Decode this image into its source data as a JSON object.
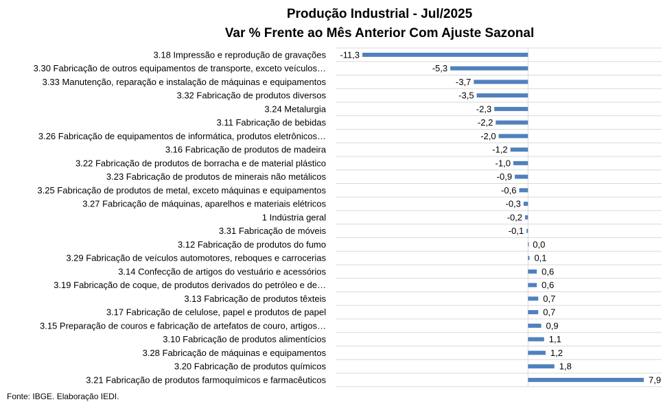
{
  "chart_data": {
    "type": "bar",
    "orientation": "horizontal",
    "title": "Produção Industrial - Jul/2025",
    "subtitle": "Var % Frente ao Mês Anterior Com Ajuste Sazonal",
    "source": "Fonte: IBGE. Elaboração IEDI.",
    "xlim": [
      -11.3,
      7.9
    ],
    "bar_color": "#4f81bd",
    "grid": true,
    "categories": [
      "3.18 Impressão e reprodução de gravações",
      "3.30 Fabricação de outros equipamentos de transporte, exceto veículos…",
      "3.33 Manutenção, reparação e instalação de máquinas e equipamentos",
      "3.32 Fabricação de produtos diversos",
      "3.24 Metalurgia",
      "3.11 Fabricação de bebidas",
      "3.26 Fabricação de equipamentos de informática, produtos eletrônicos…",
      "3.16 Fabricação de produtos de madeira",
      "3.22 Fabricação de produtos de borracha e de material plástico",
      "3.23 Fabricação de produtos de minerais não metálicos",
      "3.25 Fabricação de produtos de metal, exceto máquinas e equipamentos",
      "3.27 Fabricação de máquinas, aparelhos e materiais elétricos",
      "1 Indústria geral",
      "3.31 Fabricação de móveis",
      "3.12 Fabricação de produtos do fumo",
      "3.29 Fabricação de veículos automotores, reboques e carrocerias",
      "3.14 Confecção de artigos do vestuário e acessórios",
      "3.19 Fabricação de coque, de produtos derivados do petróleo e de…",
      "3.13 Fabricação de produtos têxteis",
      "3.17 Fabricação de celulose, papel e produtos de papel",
      "3.15 Preparação de couros e fabricação de artefatos de couro, artigos…",
      "3.10 Fabricação de produtos alimentícios",
      "3.28 Fabricação de máquinas e equipamentos",
      "3.20 Fabricação de produtos químicos",
      "3.21 Fabricação de produtos farmoquímicos e farmacêuticos"
    ],
    "values": [
      -11.3,
      -5.3,
      -3.7,
      -3.5,
      -2.3,
      -2.2,
      -2.0,
      -1.2,
      -1.0,
      -0.9,
      -0.6,
      -0.3,
      -0.2,
      -0.1,
      0.0,
      0.1,
      0.6,
      0.6,
      0.7,
      0.7,
      0.9,
      1.1,
      1.2,
      1.8,
      7.9
    ],
    "labels": [
      "-11,3",
      "-5,3",
      "-3,7",
      "-3,5",
      "-2,3",
      "-2,2",
      "-2,0",
      "-1,2",
      "-1,0",
      "-0,9",
      "-0,6",
      "-0,3",
      "-0,2",
      "-0,1",
      "0,0",
      "0,1",
      "0,6",
      "0,6",
      "0,7",
      "0,7",
      "0,9",
      "1,1",
      "1,2",
      "1,8",
      "7,9"
    ]
  }
}
